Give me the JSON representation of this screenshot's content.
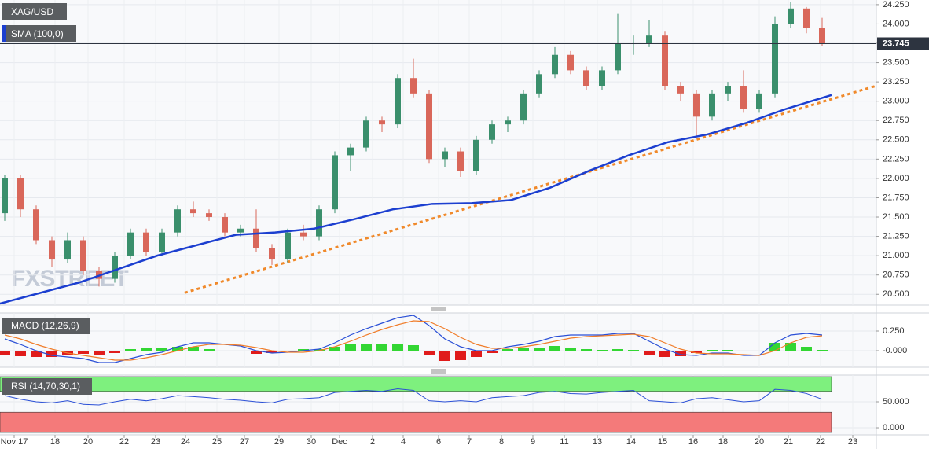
{
  "chart_data": [
    {
      "type": "candlestick",
      "title": "XAG/USD",
      "watermark": "FXSTREET",
      "xlim": [
        0,
        111.5
      ],
      "xticks": [
        {
          "value": 1.8,
          "label": "Nov 17"
        },
        {
          "value": 7,
          "label": "18"
        },
        {
          "value": 11.2,
          "label": "20"
        },
        {
          "value": 15.8,
          "label": "22"
        },
        {
          "value": 19.8,
          "label": "23"
        },
        {
          "value": 23.6,
          "label": "24"
        },
        {
          "value": 27.6,
          "label": "25"
        },
        {
          "value": 31.1,
          "label": "27"
        },
        {
          "value": 35.5,
          "label": "29"
        },
        {
          "value": 39.6,
          "label": "30"
        },
        {
          "value": 43.2,
          "label": "Dec"
        },
        {
          "value": 47.4,
          "label": "2"
        },
        {
          "value": 51.3,
          "label": "4"
        },
        {
          "value": 55.8,
          "label": "6"
        },
        {
          "value": 59.7,
          "label": "7"
        },
        {
          "value": 63.8,
          "label": "8"
        },
        {
          "value": 67.8,
          "label": "9"
        },
        {
          "value": 71.8,
          "label": "11"
        },
        {
          "value": 76,
          "label": "13"
        },
        {
          "value": 80.3,
          "label": "14"
        },
        {
          "value": 84.3,
          "label": "15"
        },
        {
          "value": 88.2,
          "label": "16"
        },
        {
          "value": 92,
          "label": "18"
        },
        {
          "value": 96.6,
          "label": "20"
        },
        {
          "value": 100.3,
          "label": "21"
        },
        {
          "value": 104.4,
          "label": "22"
        },
        {
          "value": 108.5,
          "label": "23"
        }
      ],
      "x": [
        0.6,
        2.6,
        4.6,
        6.6,
        8.6,
        10.6,
        12.6,
        14.6,
        16.6,
        18.6,
        20.6,
        22.6,
        24.6,
        26.6,
        28.6,
        30.6,
        32.6,
        34.6,
        36.6,
        38.6,
        40.6,
        42.6,
        44.6,
        46.6,
        48.6,
        50.6,
        52.6,
        54.6,
        56.6,
        58.6,
        60.6,
        62.6,
        64.6,
        66.6,
        68.6,
        70.6,
        72.6,
        74.6,
        76.6,
        78.6,
        80.6,
        82.6,
        84.6,
        86.6,
        88.6,
        90.6,
        92.6,
        94.6,
        96.6,
        98.6,
        100.6,
        102.6,
        104.6
      ],
      "open": [
        21.55,
        22.0,
        21.6,
        21.2,
        20.95,
        21.2,
        20.8,
        20.7,
        21.0,
        21.3,
        21.05,
        21.3,
        21.6,
        21.55,
        21.5,
        21.3,
        21.35,
        21.1,
        20.95,
        21.3,
        21.25,
        21.6,
        22.3,
        22.4,
        22.75,
        22.7,
        23.3,
        23.1,
        22.25,
        22.35,
        22.1,
        22.5,
        22.7,
        22.75,
        23.1,
        23.35,
        23.6,
        23.4,
        23.2,
        23.4,
        23.75,
        23.75,
        23.85,
        23.2,
        23.1,
        22.8,
        23.1,
        23.2,
        22.9,
        23.1,
        24.0,
        24.2,
        23.95
      ],
      "high": [
        22.05,
        22.05,
        21.65,
        21.25,
        21.3,
        21.25,
        20.85,
        21.05,
        21.35,
        21.35,
        21.35,
        21.65,
        21.7,
        21.6,
        21.55,
        21.4,
        21.6,
        21.15,
        21.35,
        21.4,
        21.65,
        22.35,
        22.45,
        22.8,
        22.8,
        23.35,
        23.55,
        23.15,
        22.4,
        22.4,
        22.55,
        22.75,
        22.8,
        23.15,
        23.4,
        23.7,
        23.65,
        23.45,
        23.45,
        24.13,
        23.85,
        24.05,
        23.9,
        23.25,
        23.15,
        23.15,
        23.25,
        23.4,
        23.15,
        24.1,
        24.28,
        24.22,
        24.08
      ],
      "low": [
        21.45,
        21.5,
        21.15,
        20.85,
        20.9,
        20.75,
        20.6,
        20.65,
        20.95,
        21.0,
        21.0,
        21.25,
        21.5,
        21.45,
        21.25,
        21.25,
        21.05,
        20.88,
        20.9,
        21.2,
        21.2,
        21.55,
        22.1,
        22.35,
        22.6,
        22.65,
        23.05,
        22.2,
        22.15,
        22.02,
        22.05,
        22.45,
        22.6,
        22.7,
        23.05,
        23.3,
        23.35,
        23.15,
        23.15,
        23.35,
        23.6,
        23.7,
        23.15,
        23.0,
        22.55,
        22.75,
        23.0,
        22.85,
        22.85,
        23.05,
        23.95,
        23.88,
        23.72
      ],
      "close": [
        22.0,
        21.6,
        21.2,
        20.95,
        21.2,
        20.8,
        20.7,
        21.0,
        21.3,
        21.05,
        21.3,
        21.6,
        21.55,
        21.5,
        21.3,
        21.35,
        21.1,
        20.95,
        21.3,
        21.25,
        21.6,
        22.3,
        22.4,
        22.75,
        22.7,
        23.3,
        23.1,
        22.25,
        22.35,
        22.1,
        22.5,
        22.7,
        22.75,
        23.1,
        23.35,
        23.6,
        23.4,
        23.2,
        23.4,
        23.75,
        23.75,
        23.85,
        23.2,
        23.1,
        22.8,
        23.1,
        23.2,
        22.9,
        23.1,
        24.0,
        24.2,
        23.95,
        23.745
      ],
      "color_up": "#3a8f6c",
      "color_down": "#d9675a",
      "ylim": [
        20.36,
        24.31
      ],
      "yticks": [
        {
          "value": 20.5,
          "label": "20.500"
        },
        {
          "value": 20.75,
          "label": "20.750"
        },
        {
          "value": 21,
          "label": "21.000"
        },
        {
          "value": 21.25,
          "label": "21.250"
        },
        {
          "value": 21.5,
          "label": "21.500"
        },
        {
          "value": 21.75,
          "label": "21.750"
        },
        {
          "value": 22,
          "label": "22.000"
        },
        {
          "value": 22.25,
          "label": "22.250"
        },
        {
          "value": 22.5,
          "label": "22.500"
        },
        {
          "value": 22.75,
          "label": "22.750"
        },
        {
          "value": 23,
          "label": "23.000"
        },
        {
          "value": 23.25,
          "label": "23.250"
        },
        {
          "value": 23.5,
          "label": "23.500"
        },
        {
          "value": 23.75,
          "label": "23.750"
        },
        {
          "value": 24,
          "label": "24.000"
        },
        {
          "value": 24.25,
          "label": "24.250"
        }
      ],
      "grid": true,
      "last_price": 23.745,
      "sma": {
        "name": "SMA (100,0)",
        "color": "#1c3fd0",
        "x": [
          0,
          10,
          20,
          30,
          35,
          40,
          45,
          50,
          55,
          60,
          65,
          70,
          75,
          80,
          85,
          90,
          95,
          100,
          105.8
        ],
        "values": [
          20.38,
          20.65,
          21.0,
          21.27,
          21.3,
          21.35,
          21.47,
          21.6,
          21.67,
          21.68,
          21.72,
          21.88,
          22.1,
          22.3,
          22.47,
          22.57,
          22.72,
          22.9,
          23.08
        ]
      },
      "trendline": {
        "color": "#f0892a",
        "x": [
          23.5,
          111.5
        ],
        "values": [
          20.52,
          23.2
        ]
      }
    },
    {
      "type": "macd",
      "title": "MACD (12,26,9)",
      "macd": {
        "color": "#2a4fd6",
        "values": [
          0.15,
          0.08,
          0.0,
          -0.06,
          -0.08,
          -0.1,
          -0.15,
          -0.15,
          -0.1,
          -0.05,
          -0.02,
          0.05,
          0.1,
          0.1,
          0.08,
          0.06,
          0.0,
          -0.03,
          -0.02,
          0.0,
          0.02,
          0.1,
          0.2,
          0.28,
          0.35,
          0.42,
          0.45,
          0.32,
          0.15,
          0.05,
          0.0,
          0.0,
          0.05,
          0.08,
          0.12,
          0.18,
          0.2,
          0.2,
          0.2,
          0.22,
          0.22,
          0.12,
          0.02,
          -0.05,
          -0.06,
          -0.03,
          -0.03,
          -0.06,
          -0.06,
          0.1,
          0.2,
          0.22,
          0.2
        ]
      },
      "signal": {
        "color": "#f07d2a",
        "values": [
          0.2,
          0.15,
          0.08,
          0.02,
          -0.03,
          -0.06,
          -0.09,
          -0.12,
          -0.12,
          -0.09,
          -0.05,
          0.0,
          0.05,
          0.08,
          0.08,
          0.07,
          0.04,
          0.0,
          -0.02,
          -0.02,
          0.0,
          0.05,
          0.12,
          0.2,
          0.27,
          0.33,
          0.38,
          0.37,
          0.28,
          0.17,
          0.08,
          0.03,
          0.03,
          0.05,
          0.08,
          0.12,
          0.16,
          0.18,
          0.19,
          0.2,
          0.21,
          0.18,
          0.1,
          0.02,
          -0.03,
          -0.04,
          -0.04,
          -0.05,
          -0.06,
          0.0,
          0.1,
          0.17,
          0.19
        ]
      },
      "histogram": {
        "color_up": "#33d633",
        "color_down": "#e01b1b",
        "values": [
          -0.05,
          -0.07,
          -0.08,
          -0.08,
          -0.05,
          -0.04,
          -0.06,
          -0.03,
          0.02,
          0.04,
          0.03,
          0.05,
          0.05,
          0.02,
          0.0,
          -0.01,
          -0.04,
          -0.03,
          0.0,
          0.02,
          0.02,
          0.05,
          0.08,
          0.08,
          0.08,
          0.09,
          0.07,
          -0.05,
          -0.13,
          -0.12,
          -0.08,
          -0.03,
          0.02,
          0.03,
          0.04,
          0.06,
          0.04,
          0.02,
          0.01,
          0.02,
          0.01,
          -0.06,
          -0.08,
          -0.07,
          -0.03,
          0.01,
          0.01,
          -0.01,
          0.0,
          0.1,
          0.1,
          0.05,
          0.01
        ]
      },
      "ylim": [
        -0.21,
        0.48
      ],
      "yticks": [
        {
          "value": 0.25,
          "label": "0.250"
        },
        {
          "value": 0,
          "label": "-0.000"
        }
      ]
    },
    {
      "type": "rsi",
      "title": "RSI (14,70,30,1)",
      "color": "#2a4fd6",
      "values": [
        62,
        55,
        50,
        48,
        52,
        45,
        44,
        50,
        55,
        52,
        56,
        62,
        60,
        58,
        55,
        53,
        50,
        48,
        55,
        56,
        58,
        68,
        70,
        72,
        70,
        75,
        72,
        52,
        50,
        52,
        50,
        58,
        60,
        62,
        68,
        70,
        66,
        65,
        68,
        70,
        72,
        52,
        50,
        48,
        56,
        58,
        54,
        50,
        52,
        74,
        72,
        66,
        55
      ],
      "overbought": 70,
      "oversold": 30,
      "band_high_color": "#7ef07e",
      "band_low_color": "#f47a7a",
      "ylim": [
        -13.6,
        101.5
      ],
      "yticks": [
        {
          "value": 50,
          "label": "50.000"
        },
        {
          "value": 0,
          "label": "0.000"
        }
      ]
    }
  ]
}
